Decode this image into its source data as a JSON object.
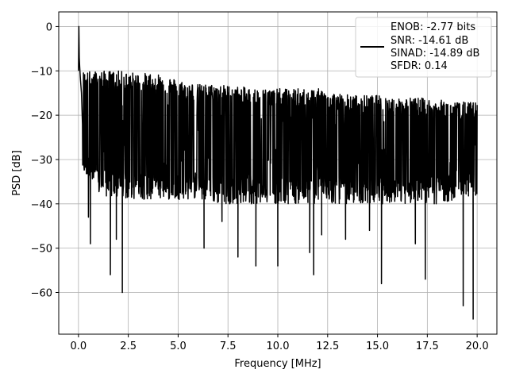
{
  "chart_data": {
    "type": "line",
    "title": "",
    "xlabel": "Frequency [MHz]",
    "ylabel": "PSD [dB]",
    "xlim": [
      -0.99,
      20.99
    ],
    "ylim": [
      -69.4,
      3.3
    ],
    "xticks": [
      0.0,
      2.5,
      5.0,
      7.5,
      10.0,
      12.5,
      15.0,
      17.5,
      20.0
    ],
    "xtick_labels": [
      "0.0",
      "2.5",
      "5.0",
      "7.5",
      "10.0",
      "12.5",
      "15.0",
      "17.5",
      "20.0"
    ],
    "yticks": [
      0,
      -10,
      -20,
      -30,
      -40,
      -50,
      -60
    ],
    "ytick_labels": [
      "0",
      "−10",
      "−20",
      "−30",
      "−40",
      "−50",
      "−60"
    ],
    "grid": true,
    "legend_position": "top-right",
    "legend_lines": [
      "ENOB: -2.77 bits",
      "SNR: -14.61 dB",
      "SINAD: -14.89 dB",
      "SFDR: 0.14"
    ],
    "series_color": "#000000",
    "series": [
      {
        "x": [
          0.0,
          0.02,
          0.04,
          0.06,
          0.1,
          0.15,
          0.2
        ],
        "y": [
          -10,
          0,
          -7,
          -9,
          -12,
          -15,
          -22
        ]
      }
    ],
    "envelope": {
      "x": [
        0.2,
        1.0,
        2.0,
        3.0,
        4.0,
        5.0,
        6.0,
        7.0,
        8.0,
        9.0,
        10.0,
        11.0,
        12.0,
        13.0,
        14.0,
        15.0,
        16.0,
        17.0,
        18.0,
        19.0,
        20.0
      ],
      "upper": [
        -13,
        -13,
        -13,
        -13.5,
        -13.5,
        -15,
        -16,
        -16,
        -16.5,
        -17,
        -17,
        -17,
        -17,
        -18,
        -18.5,
        -18.5,
        -19,
        -19,
        -19.5,
        -20,
        -20
      ],
      "lower": [
        -30,
        -35,
        -36,
        -36,
        -36,
        -36,
        -36,
        -37,
        -37,
        -37,
        -37,
        -37,
        -37,
        -37,
        -37,
        -37,
        -37,
        -37,
        -37,
        -36,
        -35
      ]
    },
    "dips": [
      {
        "x": 0.6,
        "y": -49
      },
      {
        "x": 1.6,
        "y": -56
      },
      {
        "x": 2.2,
        "y": -60
      },
      {
        "x": 1.9,
        "y": -48
      },
      {
        "x": 0.5,
        "y": -43
      },
      {
        "x": 6.3,
        "y": -50
      },
      {
        "x": 7.2,
        "y": -44
      },
      {
        "x": 8.0,
        "y": -52
      },
      {
        "x": 8.9,
        "y": -54
      },
      {
        "x": 10.0,
        "y": -54
      },
      {
        "x": 11.8,
        "y": -56
      },
      {
        "x": 11.6,
        "y": -51
      },
      {
        "x": 12.2,
        "y": -47
      },
      {
        "x": 15.2,
        "y": -58
      },
      {
        "x": 17.4,
        "y": -57
      },
      {
        "x": 19.3,
        "y": -63
      },
      {
        "x": 19.8,
        "y": -66
      },
      {
        "x": 16.9,
        "y": -49
      },
      {
        "x": 13.4,
        "y": -48
      },
      {
        "x": 14.6,
        "y": -46
      }
    ]
  }
}
